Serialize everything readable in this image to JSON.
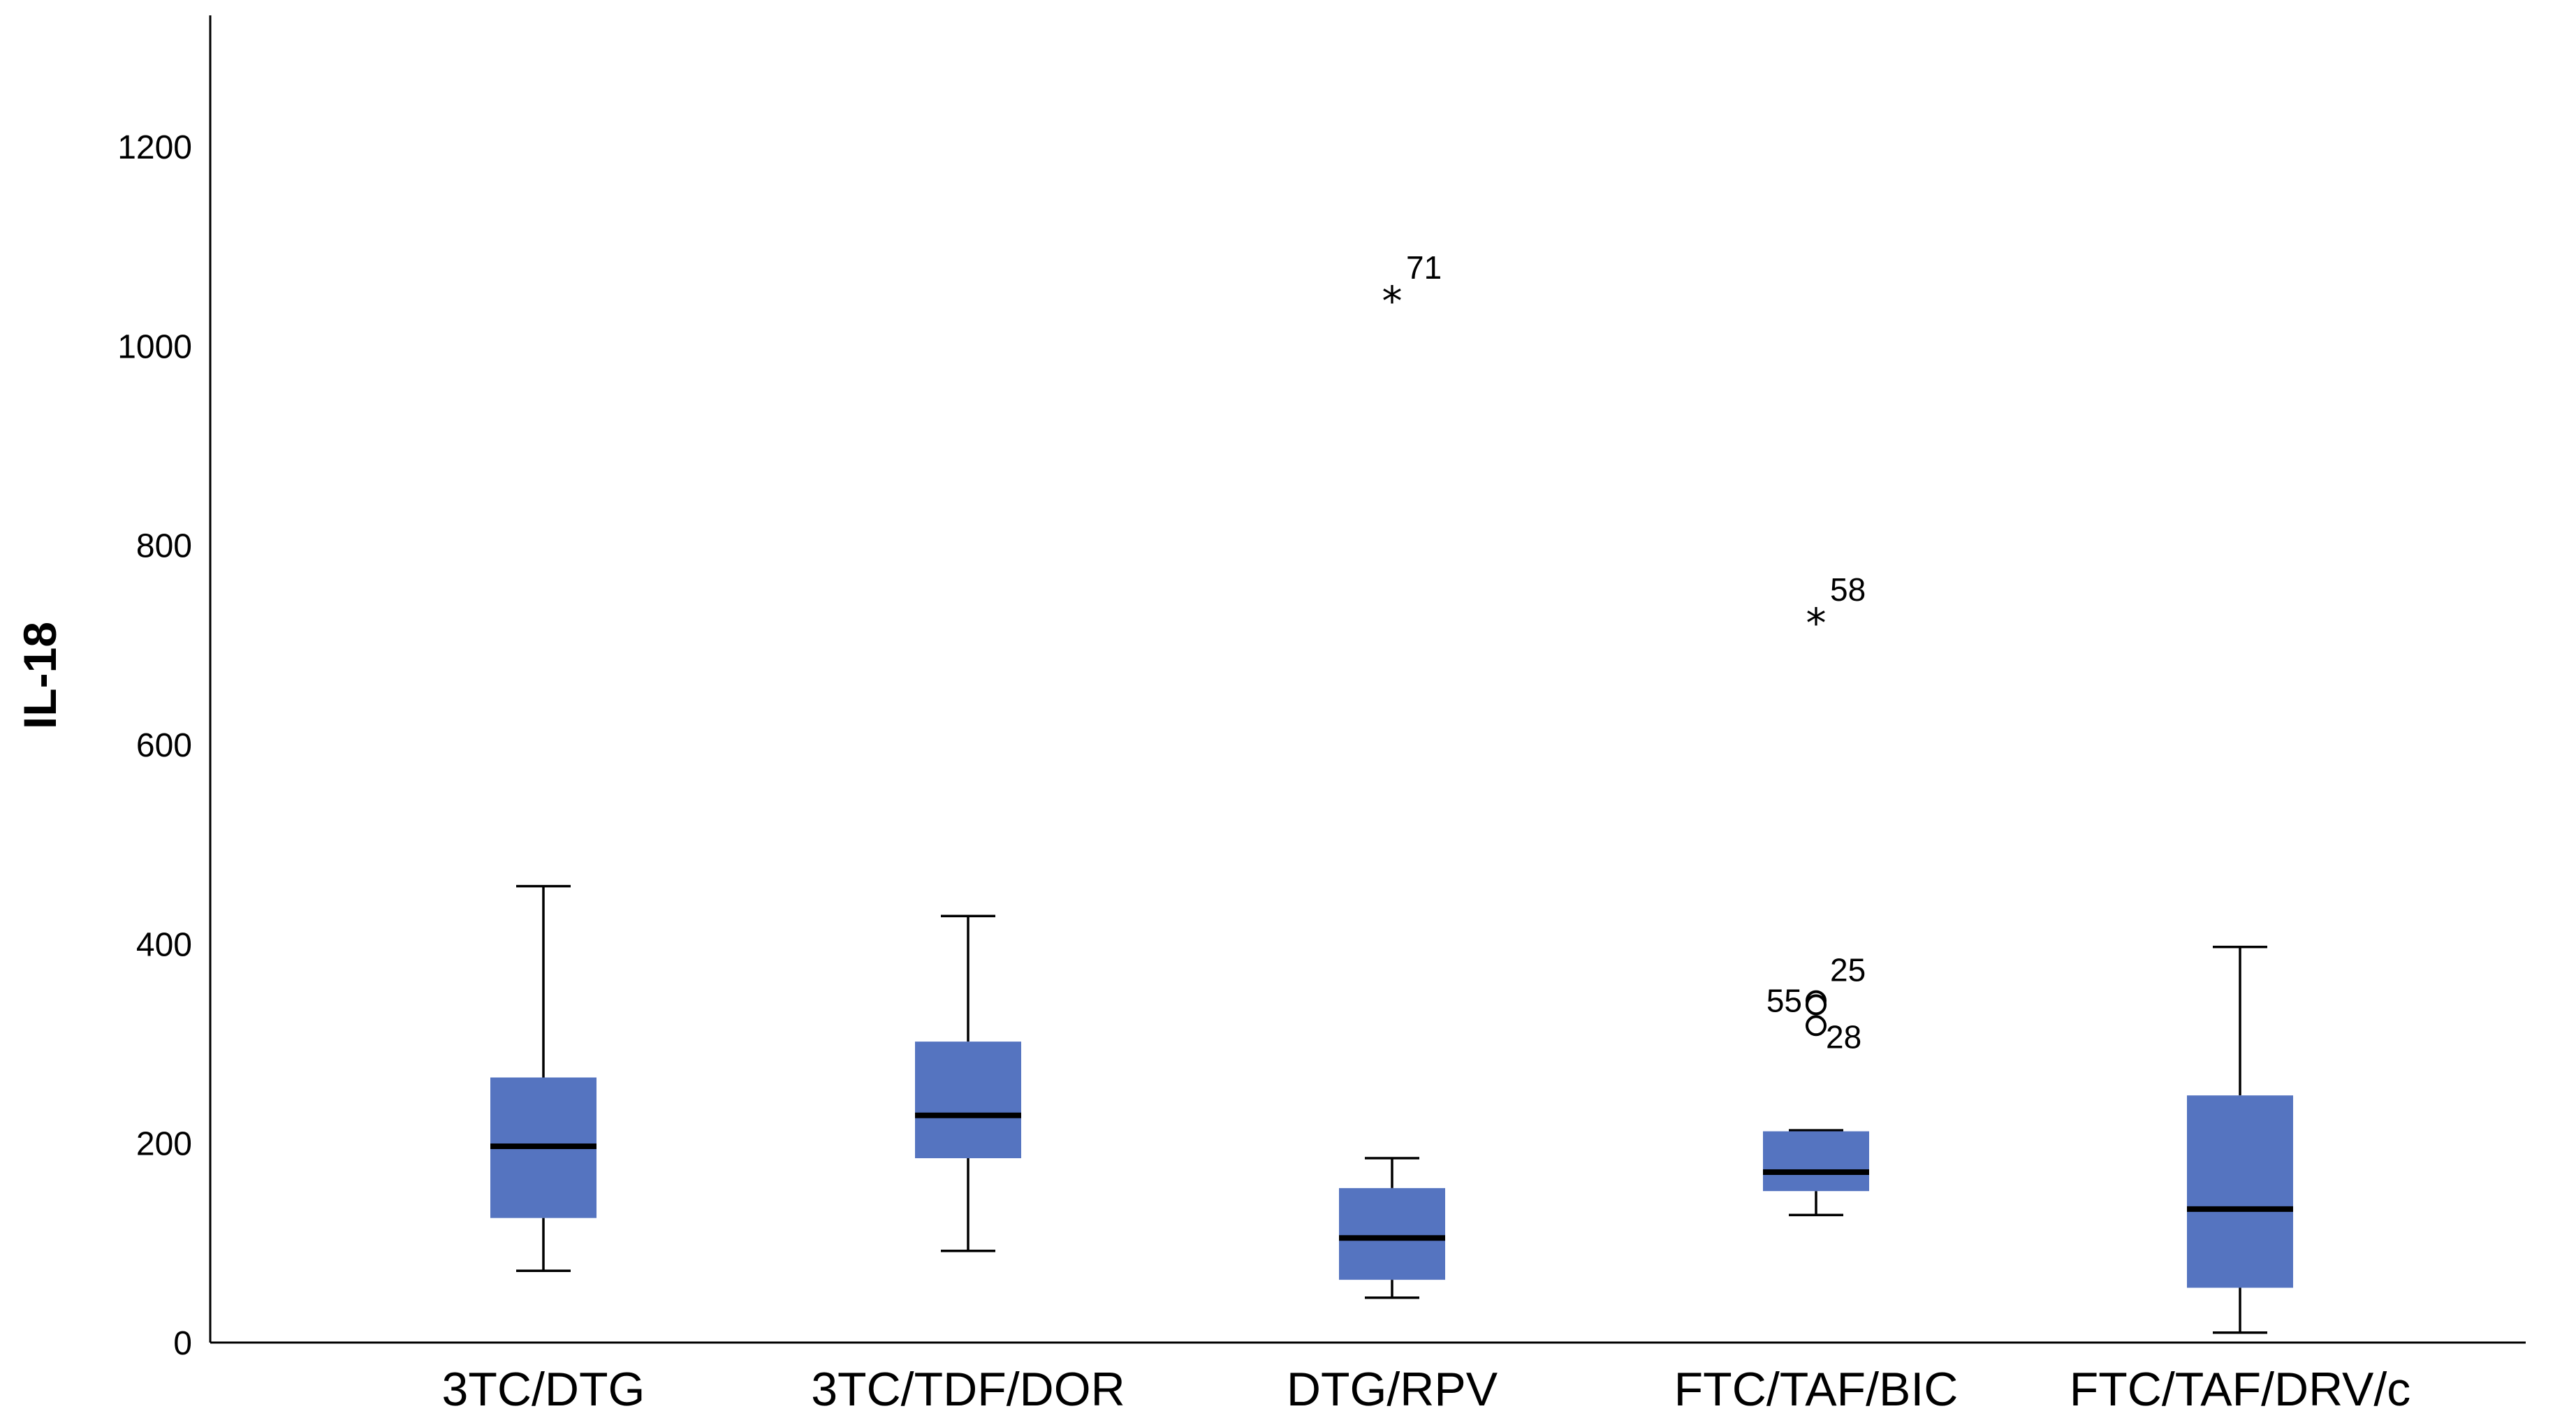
{
  "chart_data": {
    "type": "box",
    "title": "",
    "xlabel": "",
    "ylabel": "IL-18",
    "ylim": [
      0,
      1320
    ],
    "yticks": [
      0,
      200,
      400,
      600,
      800,
      1000,
      1200
    ],
    "grid": false,
    "box_color": "#5574C0",
    "groups": [
      {
        "name": "3TC/DTG",
        "whisker_low": 72,
        "q1": 125,
        "median": 197,
        "q3": 266,
        "whisker_high": 458,
        "outliers": []
      },
      {
        "name": "3TC/TDF/DOR",
        "whisker_low": 92,
        "q1": 185,
        "median": 228,
        "q3": 302,
        "whisker_high": 428,
        "outliers": []
      },
      {
        "name": "DTG/RPV",
        "whisker_low": 45,
        "q1": 63,
        "median": 105,
        "q3": 155,
        "whisker_high": 185,
        "outliers": [
          {
            "value": 1045,
            "label": "71",
            "marker": "star"
          }
        ]
      },
      {
        "name": "FTC/TAF/BIC",
        "whisker_low": 128,
        "q1": 152,
        "median": 171,
        "q3": 212,
        "whisker_high": 213,
        "outliers": [
          {
            "value": 722,
            "label": "58",
            "marker": "star"
          },
          {
            "value": 343,
            "label": "25",
            "marker": "circle"
          },
          {
            "value": 339,
            "label": "55",
            "marker": "circle"
          },
          {
            "value": 318,
            "label": "28",
            "marker": "circle"
          }
        ]
      },
      {
        "name": "FTC/TAF/DRV/c",
        "whisker_low": 10,
        "q1": 55,
        "median": 134,
        "q3": 248,
        "whisker_high": 397,
        "outliers": []
      }
    ]
  }
}
